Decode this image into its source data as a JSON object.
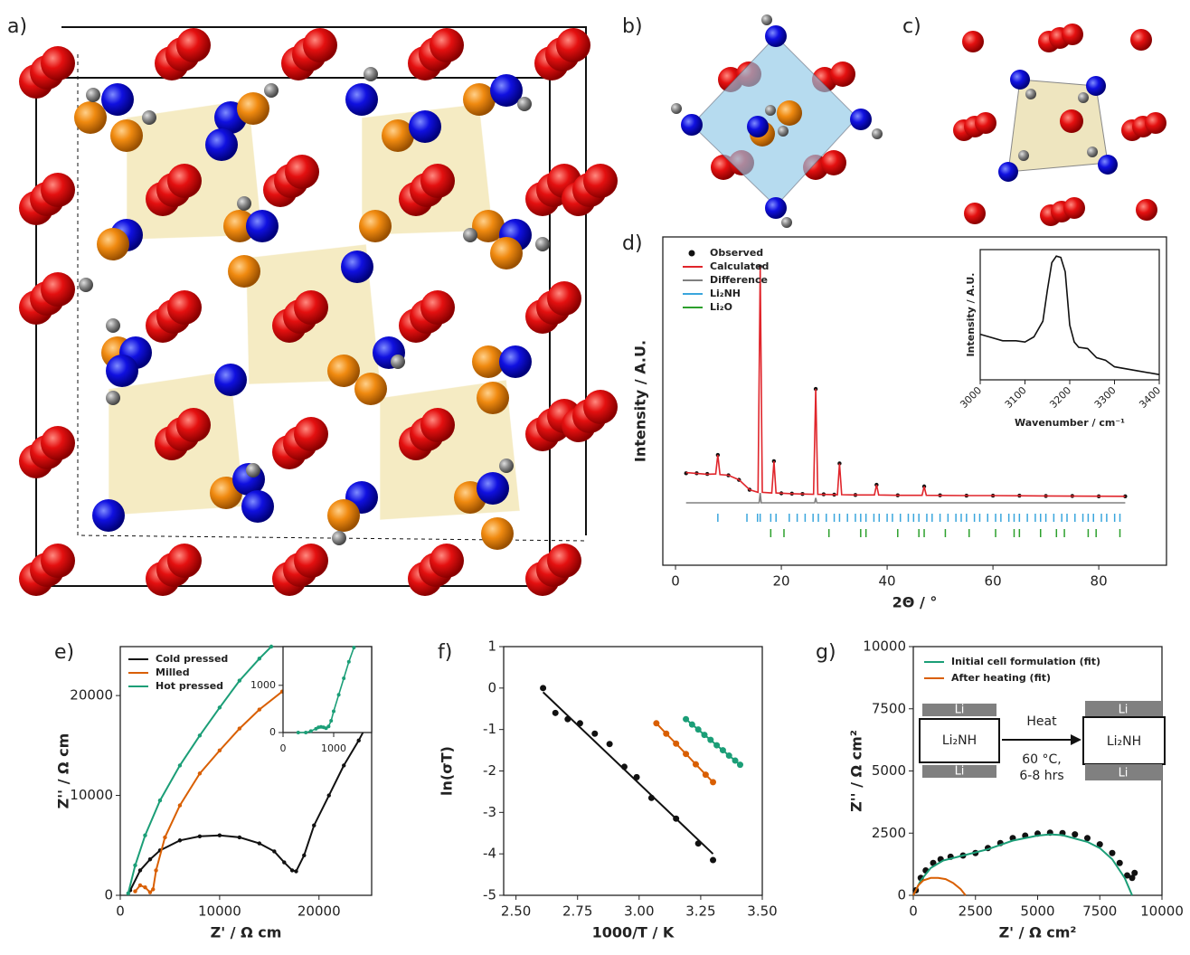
{
  "structure_panels": [
    "a)",
    "b)",
    "c)"
  ],
  "chart_data": [
    {
      "type": "line",
      "panel_label": "d)",
      "xlabel": "2Θ / °",
      "ylabel": "Intensity / A.U.",
      "xlim": [
        -2.4,
        92.8
      ],
      "ylim": [
        0,
        100
      ],
      "xticks": [
        0,
        20,
        40,
        60,
        80
      ],
      "legend": "upper left",
      "series": [
        {
          "name": "Observed",
          "color": "#111111",
          "mode": "markers",
          "x": [
            2,
            4,
            6,
            8,
            10,
            12,
            14,
            16,
            18.6,
            20,
            22,
            24,
            26.5,
            28,
            30,
            31,
            34,
            38,
            42,
            47,
            50,
            55,
            60,
            65,
            70,
            75,
            80,
            85
          ],
          "values": [
            28,
            28,
            27.8,
            33.6,
            27.4,
            26,
            23,
            91,
            31.7,
            21.9,
            21.8,
            21.7,
            53.7,
            21.6,
            21.5,
            31,
            21.4,
            24.5,
            21.3,
            24,
            21.3,
            21.2,
            21.2,
            21.2,
            21.1,
            21.1,
            21,
            21
          ]
        },
        {
          "name": "Calculated",
          "color": "#e0252b",
          "mode": "line",
          "x": [
            2,
            6,
            7.6,
            8,
            8.4,
            10,
            12,
            14,
            15.6,
            16,
            16.4,
            18.2,
            18.6,
            19,
            22,
            26.1,
            26.5,
            26.9,
            30.6,
            31,
            31.4,
            34,
            37.6,
            38,
            38.4,
            42,
            46.6,
            47,
            47.4,
            55,
            60,
            70,
            85
          ],
          "values": [
            28.2,
            27.7,
            27.8,
            33.6,
            27.6,
            27.4,
            26,
            23,
            22.2,
            91,
            22.2,
            22,
            31.7,
            22,
            21.8,
            21.6,
            53.7,
            21.6,
            21.5,
            31,
            21.5,
            21.4,
            21.4,
            24.5,
            21.4,
            21.3,
            21.3,
            24,
            21.3,
            21.2,
            21.2,
            21.1,
            21
          ]
        },
        {
          "name": "Difference",
          "color": "#808080",
          "mode": "line",
          "x": [
            2,
            15.8,
            16,
            16.2,
            26.3,
            26.5,
            26.7,
            85
          ],
          "values": [
            19,
            19,
            22,
            19,
            19,
            20.5,
            19,
            19
          ]
        },
        {
          "name": "Li₂NH",
          "color": "#3aa6dd",
          "mode": "ticks",
          "x": [
            8,
            13.5,
            15.5,
            16,
            18,
            19,
            21.5,
            23,
            24.5,
            26,
            27,
            28.5,
            30,
            31,
            32.5,
            34,
            35,
            36,
            37.5,
            38.5,
            40,
            41,
            42.5,
            44,
            45,
            46,
            47.5,
            48.5,
            50,
            51.5,
            53,
            54,
            55,
            56.5,
            57.5,
            59,
            60.5,
            61.5,
            63,
            64,
            65,
            66.5,
            68,
            69,
            70,
            71.5,
            73,
            74,
            75.5,
            77,
            78,
            79,
            80.5,
            81.5,
            83,
            84
          ]
        },
        {
          "name": "Li₂O",
          "color": "#2ca02c",
          "mode": "ticks",
          "x": [
            18,
            20.5,
            29,
            35,
            36,
            42,
            46,
            47,
            51,
            55.5,
            60.5,
            64,
            65,
            69,
            72,
            73.5,
            78,
            79.5,
            84
          ]
        }
      ],
      "inset": {
        "xlabel": "Wavenumber / cm⁻¹",
        "ylabel": "Intensity / A.U.",
        "xlim": [
          3000,
          3400
        ],
        "ylim": [
          0,
          100
        ],
        "xticks": [
          3000,
          3100,
          3200,
          3300,
          3400
        ],
        "series": [
          {
            "color": "#111111",
            "mode": "line",
            "x": [
              3000,
              3020,
              3050,
              3080,
              3100,
              3120,
              3140,
              3150,
              3160,
              3170,
              3180,
              3190,
              3200,
              3210,
              3220,
              3240,
              3260,
              3280,
              3300,
              3350,
              3400
            ],
            "values": [
              35,
              33,
              30,
              30,
              29,
              33,
              45,
              69,
              90,
              95,
              94,
              83,
              42,
              29,
              25,
              24,
              17,
              15,
              10,
              7,
              4
            ]
          }
        ]
      }
    },
    {
      "type": "line",
      "panel_label": "e)",
      "xlabel": "Z' / Ω cm",
      "ylabel": "Z'' / Ω cm",
      "xlim": [
        0,
        25300
      ],
      "ylim": [
        0,
        24900
      ],
      "xticks": [
        0,
        10000,
        20000
      ],
      "yticks": [
        0,
        10000,
        20000
      ],
      "legend": "upper left",
      "series": [
        {
          "name": "Cold pressed",
          "color": "#111111",
          "mode": "line+markers",
          "x": [
            1000,
            2000,
            3000,
            4000,
            6000,
            8000,
            10000,
            12000,
            14000,
            15500,
            16500,
            17300,
            17700,
            18500,
            19500,
            21000,
            22500,
            24000,
            24800
          ],
          "values": [
            500,
            2500,
            3600,
            4500,
            5500,
            5900,
            6000,
            5800,
            5200,
            4400,
            3300,
            2500,
            2400,
            4000,
            7000,
            10000,
            13000,
            15500,
            17000
          ]
        },
        {
          "name": "Milled",
          "color": "#d95f02",
          "mode": "line+markers",
          "x": [
            1500,
            2000,
            2500,
            3000,
            3300,
            3600,
            4500,
            6000,
            8000,
            10000,
            12000,
            14000,
            16300
          ],
          "values": [
            400,
            1000,
            800,
            300,
            600,
            2500,
            5800,
            9000,
            12200,
            14500,
            16700,
            18600,
            20400
          ]
        },
        {
          "name": "Hot pressed",
          "color": "#1b9e77",
          "mode": "line+markers",
          "x": [
            800,
            1500,
            2500,
            4000,
            6000,
            8000,
            10000,
            12000,
            14000,
            15200
          ],
          "values": [
            200,
            3000,
            6000,
            9500,
            13000,
            16000,
            18800,
            21500,
            23700,
            24900
          ]
        }
      ],
      "inset": {
        "xlim": [
          0,
          1750
        ],
        "ylim": [
          0,
          1820
        ],
        "xticks": [
          0,
          1000
        ],
        "yticks": [
          0,
          1000
        ],
        "series": [
          {
            "color": "#1b9e77",
            "mode": "line+markers",
            "x": [
              300,
              450,
              550,
              650,
              700,
              750,
              800,
              850,
              900,
              950,
              1000,
              1100,
              1200,
              1300,
              1400
            ],
            "values": [
              0,
              0,
              30,
              80,
              110,
              120,
              110,
              90,
              130,
              250,
              450,
              800,
              1150,
              1500,
              1800
            ]
          }
        ]
      }
    },
    {
      "type": "scatter",
      "panel_label": "f)",
      "xlabel": "1000/T / K",
      "ylabel": "ln(σT)",
      "xlim": [
        2.45,
        3.5
      ],
      "ylim": [
        -5,
        1
      ],
      "xticks": [
        {
          "value": 2.5,
          "label": "2.50"
        },
        {
          "value": 2.75,
          "label": "2.75"
        },
        {
          "value": 3,
          "label": "3.00"
        },
        {
          "value": 3.25,
          "label": "3.25"
        },
        {
          "value": 3.5,
          "label": "3.50"
        }
      ],
      "yticks": [
        -5,
        -4,
        -3,
        -2,
        -1,
        0,
        1
      ],
      "series": [
        {
          "color": "#111111",
          "mode": "markers",
          "x": [
            2.61,
            2.66,
            2.71,
            2.76,
            2.82,
            2.88,
            2.94,
            2.99,
            3.05,
            3.15,
            3.24,
            3.3
          ],
          "values": [
            0,
            -0.6,
            -0.75,
            -0.85,
            -1.1,
            -1.35,
            -1.9,
            -2.15,
            -2.65,
            -3.15,
            -3.75,
            -4.15
          ]
        },
        {
          "color": "#111111",
          "mode": "line",
          "x": [
            2.61,
            3.3
          ],
          "values": [
            -0.1,
            -4
          ]
        },
        {
          "color": "#d95f02",
          "mode": "line+markers",
          "x": [
            3.07,
            3.11,
            3.15,
            3.19,
            3.23,
            3.27,
            3.3
          ],
          "values": [
            -0.85,
            -1.1,
            -1.34,
            -1.59,
            -1.84,
            -2.09,
            -2.27
          ]
        },
        {
          "color": "#1b9e77",
          "mode": "line+markers",
          "x": [
            3.19,
            3.215,
            3.24,
            3.265,
            3.29,
            3.315,
            3.34,
            3.365,
            3.39,
            3.41
          ],
          "values": [
            -0.75,
            -0.88,
            -1,
            -1.13,
            -1.25,
            -1.38,
            -1.5,
            -1.63,
            -1.75,
            -1.85
          ]
        }
      ]
    },
    {
      "type": "line",
      "panel_label": "g)",
      "xlabel": "Z' / Ω cm²",
      "ylabel": "Z'' / Ω cm²",
      "xlim": [
        0,
        10000
      ],
      "ylim": [
        0,
        10000
      ],
      "xticks": [
        0,
        2500,
        5000,
        7500,
        10000
      ],
      "yticks": [
        0,
        2500,
        5000,
        7500,
        10000
      ],
      "legend": "upper left",
      "series": [
        {
          "color": "#111111",
          "mode": "markers",
          "x": [
            100,
            300,
            500,
            800,
            1100,
            1500,
            2000,
            2500,
            3000,
            3500,
            4000,
            4500,
            5000,
            5500,
            6000,
            6500,
            7000,
            7500,
            8000,
            8300,
            8600,
            8800,
            8900
          ],
          "values": [
            200,
            700,
            1000,
            1300,
            1450,
            1550,
            1600,
            1700,
            1900,
            2100,
            2300,
            2400,
            2480,
            2520,
            2500,
            2450,
            2300,
            2050,
            1700,
            1300,
            800,
            700,
            900
          ]
        },
        {
          "name": "Initial cell formulation (fit)",
          "color": "#1b9e77",
          "mode": "line",
          "x": [
            0,
            300,
            700,
            1200,
            2000,
            3000,
            4000,
            5000,
            5500,
            6000,
            7000,
            7500,
            8000,
            8500,
            8800
          ],
          "values": [
            0,
            600,
            1100,
            1400,
            1600,
            1850,
            2200,
            2400,
            2450,
            2420,
            2150,
            1900,
            1450,
            700,
            0
          ]
        },
        {
          "name": "After heating (fit)",
          "color": "#d95f02",
          "mode": "line",
          "x": [
            0,
            200,
            400,
            700,
            1000,
            1300,
            1600,
            1900,
            2100
          ],
          "values": [
            0,
            400,
            600,
            700,
            700,
            650,
            500,
            250,
            0
          ]
        }
      ],
      "diagram": {
        "left_top": "Li",
        "left_cell": "Li₂NH",
        "left_bottom": "Li",
        "arrow_label": "Heat",
        "condition_1": "60 °C,",
        "condition_2": "6-8 hrs",
        "right_top": "Li",
        "right_cell": "Li₂NH",
        "right_bottom": "Li"
      }
    }
  ]
}
